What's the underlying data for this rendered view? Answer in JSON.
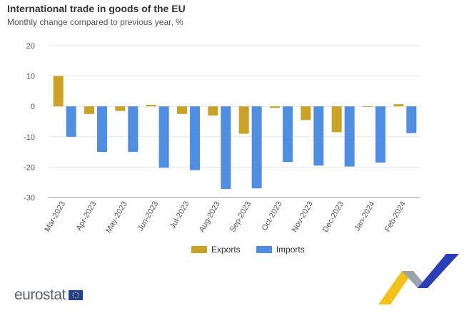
{
  "header": {
    "title": "International trade in goods of the EU",
    "subtitle": "Monthly change compared to previous year, %"
  },
  "logo": {
    "text": "eurostat",
    "icon": "eu-flag-icon"
  },
  "colors": {
    "exports": "#c9a227",
    "imports": "#4f8ee0",
    "grid": "#e6e6e6"
  },
  "chart_data": {
    "type": "bar",
    "categories": [
      "Mar-2023",
      "Apr-2023",
      "May-2023",
      "Jun-2023",
      "Jul-2023",
      "Aug-2023",
      "Sep-2023",
      "Oct-2023",
      "Nov-2023",
      "Dec-2023",
      "Jan-2024",
      "Feb-2024"
    ],
    "series": [
      {
        "name": "Exports",
        "values": [
          10.0,
          -2.5,
          -1.5,
          0.5,
          -2.5,
          -3.0,
          -9.0,
          -0.5,
          -4.5,
          -8.5,
          -0.2,
          0.7
        ]
      },
      {
        "name": "Imports",
        "values": [
          -10.0,
          -15.0,
          -15.0,
          -20.2,
          -21.0,
          -27.2,
          -27.0,
          -18.3,
          -19.5,
          -19.8,
          -18.5,
          -8.8
        ]
      }
    ],
    "yticks": [
      20,
      10,
      0,
      -10,
      -20,
      -30
    ],
    "ylim": [
      -30,
      20
    ],
    "grid": true,
    "legend_position": "bottom"
  }
}
